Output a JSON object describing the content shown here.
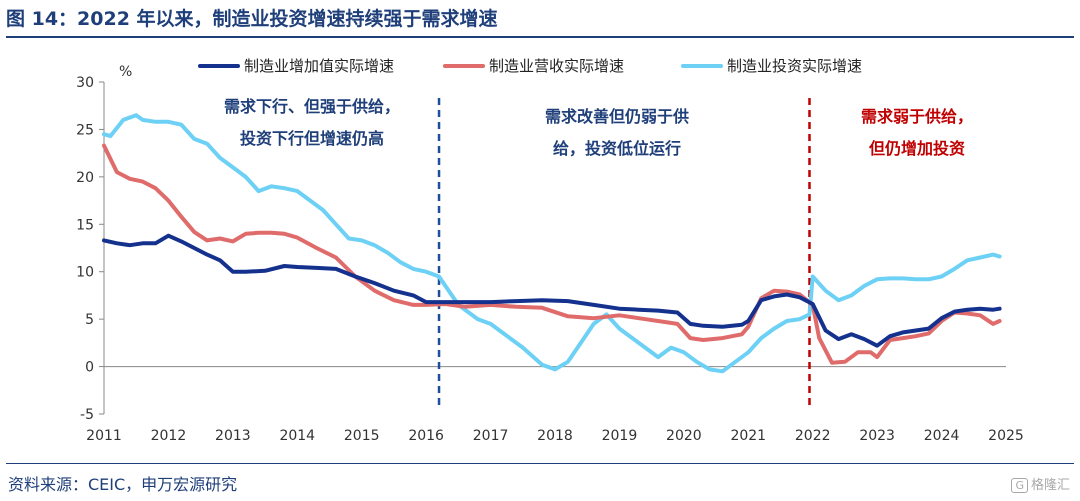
{
  "header": {
    "title": "图 14：2022 年以来，制造业投资增速持续强于需求增速"
  },
  "footer": {
    "source": "资料来源：CEIC，申万宏源研究",
    "watermark_icon": "glyph-G-icon",
    "watermark_text": "格隆汇"
  },
  "colors": {
    "title": "#1f3f7a",
    "series_1": "#15318e",
    "series_2": "#e06b6b",
    "series_3": "#6dd0f5",
    "divider_blue": "#1f4e9e",
    "divider_red": "#c00000"
  },
  "chart_data": {
    "type": "line",
    "title": "图 14：2022 年以来，制造业投资增速持续强于需求增速",
    "xlabel": "",
    "ylabel": "%",
    "ylim": [
      -5,
      30
    ],
    "yticks": [
      -5,
      0,
      5,
      10,
      15,
      20,
      25,
      30
    ],
    "xlim": [
      2011,
      2025
    ],
    "xticks": [
      2011,
      2012,
      2013,
      2014,
      2015,
      2016,
      2017,
      2018,
      2019,
      2020,
      2021,
      2022,
      2023,
      2024,
      2025
    ],
    "grid": false,
    "legend_position": "top",
    "series": [
      {
        "name": "制造业增加值实际增速",
        "x": [
          2011.0,
          2011.2,
          2011.4,
          2011.6,
          2011.8,
          2012.0,
          2012.2,
          2012.4,
          2012.6,
          2012.8,
          2013.0,
          2013.2,
          2013.5,
          2013.8,
          2014.0,
          2014.3,
          2014.6,
          2014.9,
          2015.2,
          2015.5,
          2015.8,
          2016.0,
          2016.3,
          2016.6,
          2017.0,
          2017.4,
          2017.8,
          2018.2,
          2018.6,
          2019.0,
          2019.3,
          2019.6,
          2019.9,
          2020.1,
          2020.3,
          2020.6,
          2020.9,
          2021.0,
          2021.2,
          2021.4,
          2021.6,
          2021.8,
          2022.0,
          2022.2,
          2022.4,
          2022.6,
          2022.8,
          2023.0,
          2023.2,
          2023.4,
          2023.6,
          2023.8,
          2024.0,
          2024.2,
          2024.4,
          2024.6,
          2024.8,
          2024.9
        ],
        "values": [
          13.3,
          13.0,
          12.8,
          13.0,
          13.0,
          13.8,
          13.2,
          12.5,
          11.8,
          11.2,
          10.0,
          10.0,
          10.1,
          10.6,
          10.5,
          10.4,
          10.3,
          9.5,
          8.8,
          8.0,
          7.5,
          6.8,
          6.8,
          6.8,
          6.8,
          6.9,
          7.0,
          6.9,
          6.5,
          6.1,
          6.0,
          5.9,
          5.7,
          4.5,
          4.3,
          4.2,
          4.4,
          4.8,
          7.0,
          7.4,
          7.6,
          7.3,
          6.6,
          3.8,
          2.9,
          3.4,
          2.9,
          2.2,
          3.2,
          3.6,
          3.8,
          4.0,
          5.1,
          5.8,
          6.0,
          6.1,
          6.0,
          6.1
        ]
      },
      {
        "name": "制造业营收实际增速",
        "x": [
          2011.0,
          2011.2,
          2011.4,
          2011.6,
          2011.8,
          2012.0,
          2012.2,
          2012.4,
          2012.6,
          2012.8,
          2013.0,
          2013.2,
          2013.4,
          2013.6,
          2013.8,
          2014.0,
          2014.3,
          2014.6,
          2014.9,
          2015.2,
          2015.5,
          2015.8,
          2016.0,
          2016.3,
          2016.6,
          2017.0,
          2017.4,
          2017.8,
          2018.2,
          2018.6,
          2019.0,
          2019.3,
          2019.6,
          2019.9,
          2020.1,
          2020.3,
          2020.6,
          2020.9,
          2021.0,
          2021.2,
          2021.4,
          2021.6,
          2021.8,
          2022.0,
          2022.1,
          2022.3,
          2022.5,
          2022.7,
          2022.9,
          2023.0,
          2023.2,
          2023.4,
          2023.6,
          2023.8,
          2024.0,
          2024.2,
          2024.4,
          2024.6,
          2024.8,
          2024.9
        ],
        "values": [
          23.3,
          20.5,
          19.8,
          19.5,
          18.8,
          17.5,
          15.8,
          14.2,
          13.3,
          13.5,
          13.2,
          14.0,
          14.1,
          14.1,
          14.0,
          13.6,
          12.5,
          11.5,
          9.5,
          8.0,
          7.0,
          6.5,
          6.5,
          6.6,
          6.3,
          6.5,
          6.3,
          6.2,
          5.3,
          5.1,
          5.4,
          5.1,
          4.8,
          4.5,
          3.0,
          2.8,
          3.0,
          3.4,
          4.2,
          7.2,
          8.0,
          7.9,
          7.6,
          6.5,
          3.0,
          0.4,
          0.5,
          1.5,
          1.5,
          1.0,
          2.8,
          3.0,
          3.2,
          3.5,
          4.8,
          5.7,
          5.6,
          5.4,
          4.5,
          4.8
        ]
      },
      {
        "name": "制造业投资实际增速",
        "x": [
          2011.0,
          2011.1,
          2011.3,
          2011.5,
          2011.6,
          2011.8,
          2012.0,
          2012.2,
          2012.4,
          2012.6,
          2012.8,
          2013.0,
          2013.2,
          2013.4,
          2013.6,
          2013.8,
          2014.0,
          2014.2,
          2014.4,
          2014.6,
          2014.8,
          2015.0,
          2015.2,
          2015.4,
          2015.6,
          2015.8,
          2016.0,
          2016.2,
          2016.5,
          2016.8,
          2017.0,
          2017.2,
          2017.5,
          2017.8,
          2018.0,
          2018.2,
          2018.4,
          2018.6,
          2018.8,
          2019.0,
          2019.2,
          2019.4,
          2019.6,
          2019.8,
          2020.0,
          2020.2,
          2020.4,
          2020.6,
          2020.8,
          2021.0,
          2021.2,
          2021.4,
          2021.6,
          2021.8,
          2021.95,
          2022.0,
          2022.2,
          2022.4,
          2022.6,
          2022.8,
          2023.0,
          2023.2,
          2023.4,
          2023.6,
          2023.8,
          2024.0,
          2024.2,
          2024.4,
          2024.6,
          2024.8,
          2024.9
        ],
        "values": [
          24.5,
          24.3,
          26.0,
          26.5,
          26.0,
          25.8,
          25.8,
          25.5,
          24.0,
          23.5,
          22.0,
          21.0,
          20.0,
          18.5,
          19.0,
          18.8,
          18.5,
          17.5,
          16.5,
          15.0,
          13.5,
          13.3,
          12.8,
          12.0,
          11.0,
          10.3,
          10.0,
          9.5,
          6.5,
          5.0,
          4.5,
          3.5,
          2.0,
          0.2,
          -0.3,
          0.5,
          2.5,
          4.5,
          5.5,
          4.0,
          3.0,
          2.0,
          1.0,
          2.0,
          1.5,
          0.5,
          -0.3,
          -0.5,
          0.5,
          1.5,
          3.0,
          4.0,
          4.8,
          5.0,
          5.5,
          9.5,
          8.0,
          7.0,
          7.5,
          8.5,
          9.2,
          9.3,
          9.3,
          9.2,
          9.2,
          9.5,
          10.3,
          11.2,
          11.5,
          11.8,
          11.6
        ]
      }
    ],
    "dividers": [
      {
        "x": 2016.2,
        "color": "#1f4e9e"
      },
      {
        "x": 2021.95,
        "color": "#c00000"
      }
    ],
    "annotations": [
      {
        "lines": [
          "需求下行、但强于供给，",
          "投资下行但增速仍高"
        ],
        "color": "blue"
      },
      {
        "lines": [
          "需求改善但仍弱于供",
          "给，投资低位运行"
        ],
        "color": "blue"
      },
      {
        "lines": [
          "需求弱于供给，",
          "但仍增加投资"
        ],
        "color": "red"
      }
    ]
  }
}
